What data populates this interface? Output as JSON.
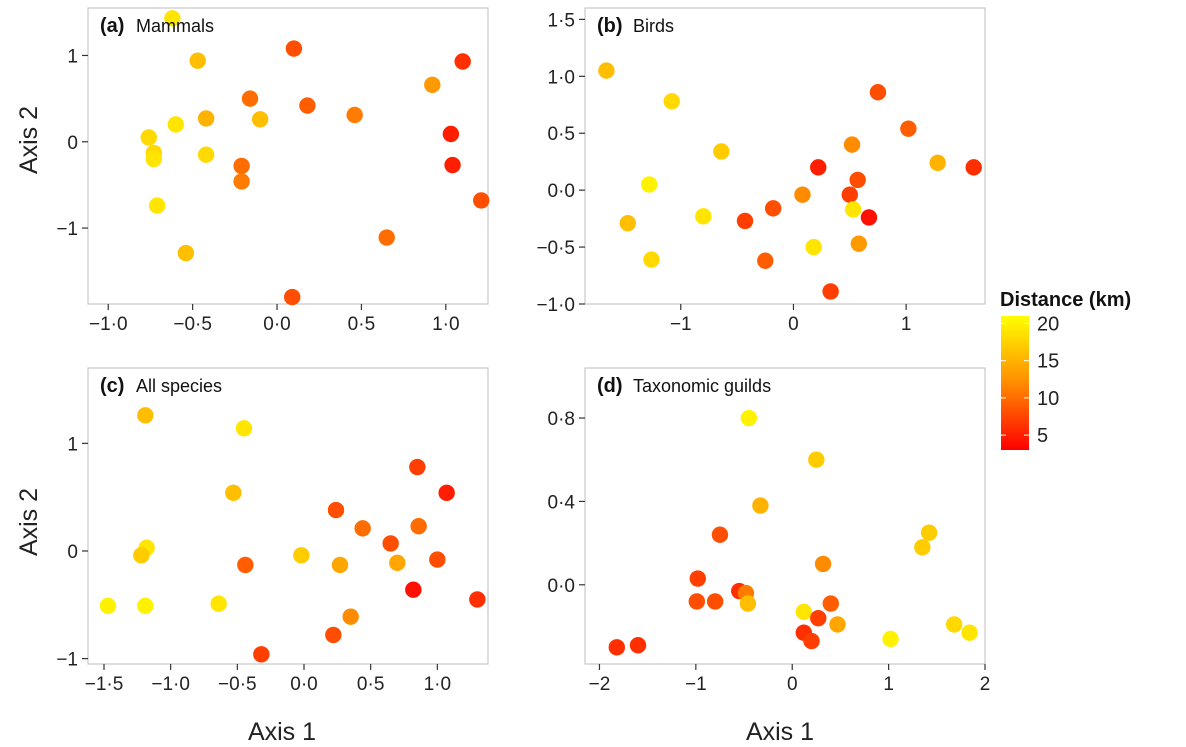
{
  "colors": {
    "low": "#ff0000",
    "mid": "#ff8c00",
    "high": "#ffff00",
    "frame": "#bdbdbd"
  },
  "legend": {
    "title": "Distance (km)",
    "ticks": [
      {
        "label": "20",
        "value": 20
      },
      {
        "label": "15",
        "value": 15
      },
      {
        "label": "10",
        "value": 10
      },
      {
        "label": "5",
        "value": 5
      }
    ],
    "min": 3,
    "max": 21
  },
  "axis_titles": {
    "x": "Axis 1",
    "y": "Axis 2"
  },
  "chart_data": [
    {
      "type": "scatter",
      "letter": "(a)",
      "title": "Mammals",
      "xlim": [
        -1.12,
        1.25
      ],
      "ylim": [
        -1.88,
        1.55
      ],
      "xticks": [
        {
          "v": -1.0,
          "label": "−1·0"
        },
        {
          "v": -0.5,
          "label": "−0·5"
        },
        {
          "v": 0.0,
          "label": "0·0"
        },
        {
          "v": 0.5,
          "label": "0·5"
        },
        {
          "v": 1.0,
          "label": "1·0"
        }
      ],
      "yticks": [
        {
          "v": 1,
          "label": "1"
        },
        {
          "v": 0,
          "label": "0"
        },
        {
          "v": -1,
          "label": "−1"
        }
      ],
      "points": [
        {
          "x": -0.62,
          "y": 1.43,
          "d": 19
        },
        {
          "x": -0.47,
          "y": 0.94,
          "d": 16
        },
        {
          "x": 0.1,
          "y": 1.08,
          "d": 8
        },
        {
          "x": 1.1,
          "y": 0.93,
          "d": 6
        },
        {
          "x": 0.92,
          "y": 0.66,
          "d": 13
        },
        {
          "x": -0.16,
          "y": 0.5,
          "d": 10
        },
        {
          "x": 0.18,
          "y": 0.42,
          "d": 9
        },
        {
          "x": 0.46,
          "y": 0.31,
          "d": 11
        },
        {
          "x": -0.42,
          "y": 0.27,
          "d": 15
        },
        {
          "x": -0.1,
          "y": 0.26,
          "d": 16
        },
        {
          "x": -0.6,
          "y": 0.2,
          "d": 19
        },
        {
          "x": -0.76,
          "y": 0.05,
          "d": 18
        },
        {
          "x": -0.73,
          "y": -0.13,
          "d": 18
        },
        {
          "x": -0.73,
          "y": -0.2,
          "d": 19
        },
        {
          "x": -0.42,
          "y": -0.15,
          "d": 18
        },
        {
          "x": -0.21,
          "y": -0.28,
          "d": 10
        },
        {
          "x": -0.21,
          "y": -0.46,
          "d": 11
        },
        {
          "x": 1.03,
          "y": 0.09,
          "d": 5
        },
        {
          "x": 1.04,
          "y": -0.27,
          "d": 5
        },
        {
          "x": 1.21,
          "y": -0.68,
          "d": 8
        },
        {
          "x": -0.71,
          "y": -0.74,
          "d": 19
        },
        {
          "x": -0.54,
          "y": -1.29,
          "d": 16
        },
        {
          "x": 0.65,
          "y": -1.11,
          "d": 10
        },
        {
          "x": 0.09,
          "y": -1.8,
          "d": 8
        }
      ]
    },
    {
      "type": "scatter",
      "letter": "(b)",
      "title": "Birds",
      "xlim": [
        -1.85,
        1.7
      ],
      "ylim": [
        -1.0,
        1.6
      ],
      "xticks": [
        {
          "v": -1,
          "label": "−1"
        },
        {
          "v": 0,
          "label": "0"
        },
        {
          "v": 1,
          "label": "1"
        }
      ],
      "yticks": [
        {
          "v": 1.5,
          "label": "1·5"
        },
        {
          "v": 1.0,
          "label": "1·0"
        },
        {
          "v": 0.5,
          "label": "0·5"
        },
        {
          "v": 0.0,
          "label": "0·0"
        },
        {
          "v": -0.5,
          "label": "−0·5"
        },
        {
          "v": -1.0,
          "label": "−1·0"
        }
      ],
      "points": [
        {
          "x": -1.66,
          "y": 1.05,
          "d": 16
        },
        {
          "x": -1.08,
          "y": 0.78,
          "d": 18
        },
        {
          "x": 0.75,
          "y": 0.86,
          "d": 8
        },
        {
          "x": 1.02,
          "y": 0.54,
          "d": 9
        },
        {
          "x": 0.52,
          "y": 0.4,
          "d": 12
        },
        {
          "x": -0.64,
          "y": 0.34,
          "d": 17
        },
        {
          "x": 1.28,
          "y": 0.24,
          "d": 15
        },
        {
          "x": 1.6,
          "y": 0.2,
          "d": 6
        },
        {
          "x": 0.22,
          "y": 0.2,
          "d": 5
        },
        {
          "x": 0.57,
          "y": 0.09,
          "d": 8
        },
        {
          "x": -1.28,
          "y": 0.05,
          "d": 20
        },
        {
          "x": 0.08,
          "y": -0.04,
          "d": 12
        },
        {
          "x": 0.5,
          "y": -0.04,
          "d": 7
        },
        {
          "x": 0.53,
          "y": -0.17,
          "d": 19
        },
        {
          "x": 0.67,
          "y": -0.24,
          "d": 4
        },
        {
          "x": -0.18,
          "y": -0.16,
          "d": 8
        },
        {
          "x": -0.8,
          "y": -0.23,
          "d": 19
        },
        {
          "x": -0.43,
          "y": -0.27,
          "d": 7
        },
        {
          "x": -1.47,
          "y": -0.29,
          "d": 16
        },
        {
          "x": 0.58,
          "y": -0.47,
          "d": 13
        },
        {
          "x": 0.18,
          "y": -0.5,
          "d": 19
        },
        {
          "x": -1.26,
          "y": -0.61,
          "d": 18
        },
        {
          "x": -0.25,
          "y": -0.62,
          "d": 9
        },
        {
          "x": 0.33,
          "y": -0.89,
          "d": 7
        }
      ]
    },
    {
      "type": "scatter",
      "letter": "(c)",
      "title": "All species",
      "xlim": [
        -1.62,
        1.38
      ],
      "ylim": [
        -1.05,
        1.7
      ],
      "xticks": [
        {
          "v": -1.5,
          "label": "−1·5"
        },
        {
          "v": -1.0,
          "label": "−1·0"
        },
        {
          "v": -0.5,
          "label": "−0·5"
        },
        {
          "v": 0.0,
          "label": "0·0"
        },
        {
          "v": 0.5,
          "label": "0·5"
        },
        {
          "v": 1.0,
          "label": "1·0"
        }
      ],
      "yticks": [
        {
          "v": 1,
          "label": "1"
        },
        {
          "v": 0,
          "label": "0"
        },
        {
          "v": -1,
          "label": "−1"
        }
      ],
      "points": [
        {
          "x": -1.19,
          "y": 1.26,
          "d": 16
        },
        {
          "x": -0.45,
          "y": 1.14,
          "d": 19
        },
        {
          "x": 0.85,
          "y": 0.78,
          "d": 7
        },
        {
          "x": 1.07,
          "y": 0.54,
          "d": 5
        },
        {
          "x": -0.53,
          "y": 0.54,
          "d": 16
        },
        {
          "x": 0.24,
          "y": 0.38,
          "d": 8
        },
        {
          "x": 0.44,
          "y": 0.21,
          "d": 10
        },
        {
          "x": 0.86,
          "y": 0.23,
          "d": 10
        },
        {
          "x": 0.65,
          "y": 0.07,
          "d": 8
        },
        {
          "x": -1.18,
          "y": 0.03,
          "d": 19
        },
        {
          "x": -1.22,
          "y": -0.04,
          "d": 17
        },
        {
          "x": -0.02,
          "y": -0.04,
          "d": 17
        },
        {
          "x": 1.0,
          "y": -0.08,
          "d": 8
        },
        {
          "x": 0.7,
          "y": -0.11,
          "d": 14
        },
        {
          "x": 0.27,
          "y": -0.13,
          "d": 14
        },
        {
          "x": -0.44,
          "y": -0.13,
          "d": 9
        },
        {
          "x": 0.82,
          "y": -0.36,
          "d": 4
        },
        {
          "x": 1.3,
          "y": -0.45,
          "d": 6
        },
        {
          "x": -1.47,
          "y": -0.51,
          "d": 20
        },
        {
          "x": -1.19,
          "y": -0.51,
          "d": 20
        },
        {
          "x": -0.64,
          "y": -0.49,
          "d": 19
        },
        {
          "x": 0.35,
          "y": -0.61,
          "d": 12
        },
        {
          "x": 0.22,
          "y": -0.78,
          "d": 8
        },
        {
          "x": -0.32,
          "y": -0.96,
          "d": 7
        }
      ]
    },
    {
      "type": "scatter",
      "letter": "(d)",
      "title": "Taxonomic guilds",
      "xlim": [
        -2.15,
        2.0
      ],
      "ylim": [
        -0.38,
        1.04
      ],
      "xticks": [
        {
          "v": -2,
          "label": "−2"
        },
        {
          "v": -1,
          "label": "−1"
        },
        {
          "v": 0,
          "label": "0"
        },
        {
          "v": 1,
          "label": "1"
        },
        {
          "v": 2,
          "label": "2"
        }
      ],
      "yticks": [
        {
          "v": 0.8,
          "label": "0·8"
        },
        {
          "v": 0.4,
          "label": "0·4"
        },
        {
          "v": 0.0,
          "label": "0·0"
        }
      ],
      "points": [
        {
          "x": -0.45,
          "y": 0.8,
          "d": 20
        },
        {
          "x": 0.25,
          "y": 0.6,
          "d": 17
        },
        {
          "x": -0.33,
          "y": 0.38,
          "d": 15
        },
        {
          "x": 1.42,
          "y": 0.25,
          "d": 17
        },
        {
          "x": -0.75,
          "y": 0.24,
          "d": 8
        },
        {
          "x": 1.35,
          "y": 0.18,
          "d": 17
        },
        {
          "x": 0.32,
          "y": 0.1,
          "d": 12
        },
        {
          "x": -0.98,
          "y": 0.03,
          "d": 7
        },
        {
          "x": -0.55,
          "y": -0.03,
          "d": 6
        },
        {
          "x": -0.48,
          "y": -0.04,
          "d": 11
        },
        {
          "x": -0.99,
          "y": -0.08,
          "d": 8
        },
        {
          "x": -0.8,
          "y": -0.08,
          "d": 8
        },
        {
          "x": -0.46,
          "y": -0.09,
          "d": 16
        },
        {
          "x": 0.4,
          "y": -0.09,
          "d": 9
        },
        {
          "x": 0.12,
          "y": -0.13,
          "d": 19
        },
        {
          "x": 0.27,
          "y": -0.16,
          "d": 7
        },
        {
          "x": 0.47,
          "y": -0.19,
          "d": 14
        },
        {
          "x": 1.68,
          "y": -0.19,
          "d": 18
        },
        {
          "x": 0.12,
          "y": -0.23,
          "d": 6
        },
        {
          "x": 1.84,
          "y": -0.23,
          "d": 19
        },
        {
          "x": 0.2,
          "y": -0.27,
          "d": 7
        },
        {
          "x": 1.02,
          "y": -0.26,
          "d": 20
        },
        {
          "x": -1.82,
          "y": -0.3,
          "d": 6
        },
        {
          "x": -1.6,
          "y": -0.29,
          "d": 6
        }
      ]
    }
  ]
}
